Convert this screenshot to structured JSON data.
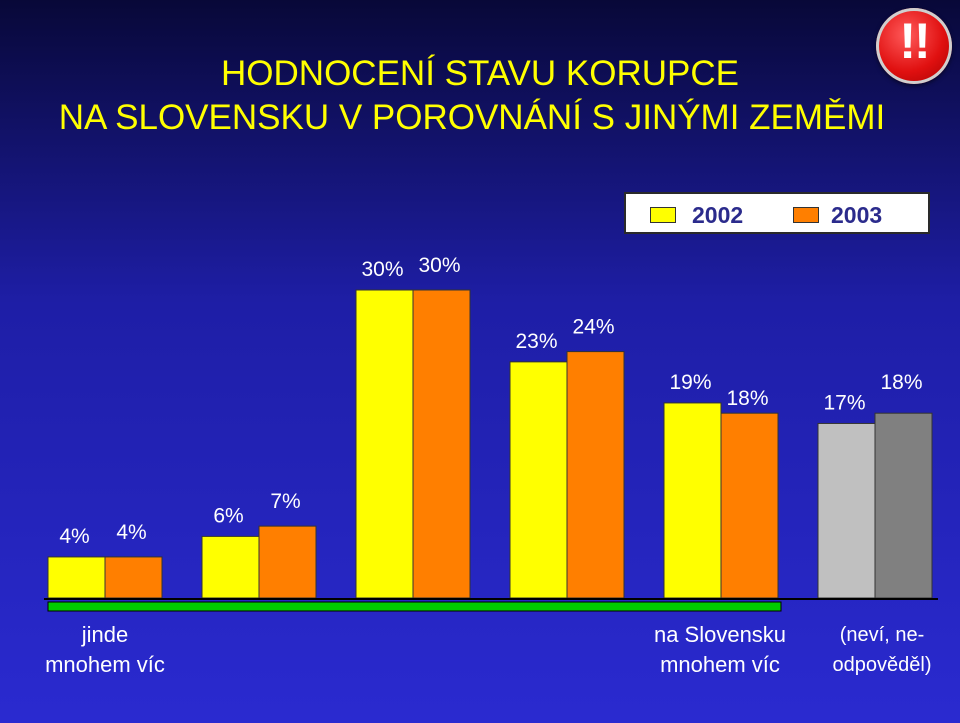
{
  "title": {
    "line1": "HODNOCENÍ STAVU KORUPCE",
    "line2": "NA SLOVENSKU V POROVNÁNÍ S JINÝMI ZEMĚMI"
  },
  "warning_badge": "!!",
  "legend": [
    {
      "label": "2002",
      "color": "#ffff00"
    },
    {
      "label": "2003",
      "color": "#ff7f00"
    }
  ],
  "category_labels": {
    "left": [
      "jinde",
      "mnohem víc"
    ],
    "right": [
      "na Slovensku",
      "mnohem víc"
    ],
    "unknown": [
      "(neví, ne-",
      "odpověděl)"
    ]
  },
  "chart_data": {
    "type": "bar",
    "categories": [
      "jinde mnohem víc",
      "",
      "",
      "",
      "na Slovensku mnohem víc",
      "(neví, ne-odpověděl)"
    ],
    "series": [
      {
        "name": "2002",
        "values": [
          4,
          6,
          30,
          23,
          19,
          17
        ]
      },
      {
        "name": "2003",
        "values": [
          4,
          7,
          30,
          24,
          18,
          18
        ]
      }
    ],
    "data_labels": {
      "2002": [
        "4%",
        "6%",
        "30%",
        "23%",
        "19%",
        "17%"
      ],
      "2003": [
        "4%",
        "7%",
        "30%",
        "24%",
        "18%",
        "18%"
      ]
    },
    "colors": {
      "2002": "#ffff00",
      "2003": "#ff7f00",
      "unknown_2002": "#c0c0c0",
      "unknown_2003": "#808080",
      "scale_bar": "#00cc00"
    },
    "ylim": [
      0,
      30
    ],
    "grid": false,
    "legend_position": "top-right"
  }
}
